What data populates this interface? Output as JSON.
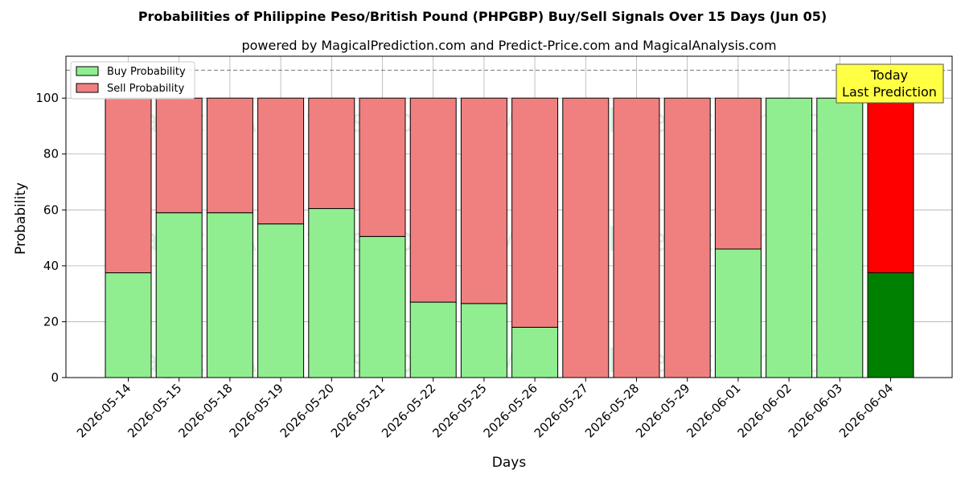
{
  "chart_data": {
    "type": "bar",
    "stacked": true,
    "title": "Probabilities of Philippine Peso/British Pound (PHPGBP) Buy/Sell Signals Over 15 Days (Jun 05)",
    "subtitle": "powered by MagicalPrediction.com and Predict-Price.com and MagicalAnalysis.com",
    "xlabel": "Days",
    "ylabel": "Probability",
    "ylim": [
      0,
      115
    ],
    "yticks": [
      0,
      20,
      40,
      60,
      80,
      100
    ],
    "grid": true,
    "legend_position": "top-left",
    "reference_line": 110,
    "categories": [
      "2026-05-14",
      "2026-05-15",
      "2026-05-18",
      "2026-05-19",
      "2026-05-20",
      "2026-05-21",
      "2026-05-22",
      "2026-05-25",
      "2026-05-26",
      "2026-05-27",
      "2026-05-28",
      "2026-05-29",
      "2026-06-01",
      "2026-06-02",
      "2026-06-03",
      "2026-06-04"
    ],
    "series": [
      {
        "name": "Buy Probability",
        "color": "#90ee90",
        "values": [
          37.5,
          59,
          59,
          55,
          60.5,
          50.5,
          27,
          26.5,
          18,
          0,
          0,
          0,
          46,
          100,
          100,
          37.5
        ]
      },
      {
        "name": "Sell Probability",
        "color": "#f08080",
        "values": [
          62.5,
          41,
          41,
          45,
          39.5,
          49.5,
          73,
          73.5,
          82,
          100,
          100,
          100,
          54,
          0,
          0,
          62.5
        ]
      }
    ],
    "highlight": {
      "index": 15,
      "buy_color": "#008000",
      "sell_color": "#ff0000"
    },
    "annotation": {
      "lines": [
        "Today",
        "Last Prediction"
      ],
      "background": "#ffff44"
    },
    "watermark": [
      "MagicalAnalysis.com",
      "MagicalPrediction.com"
    ]
  }
}
